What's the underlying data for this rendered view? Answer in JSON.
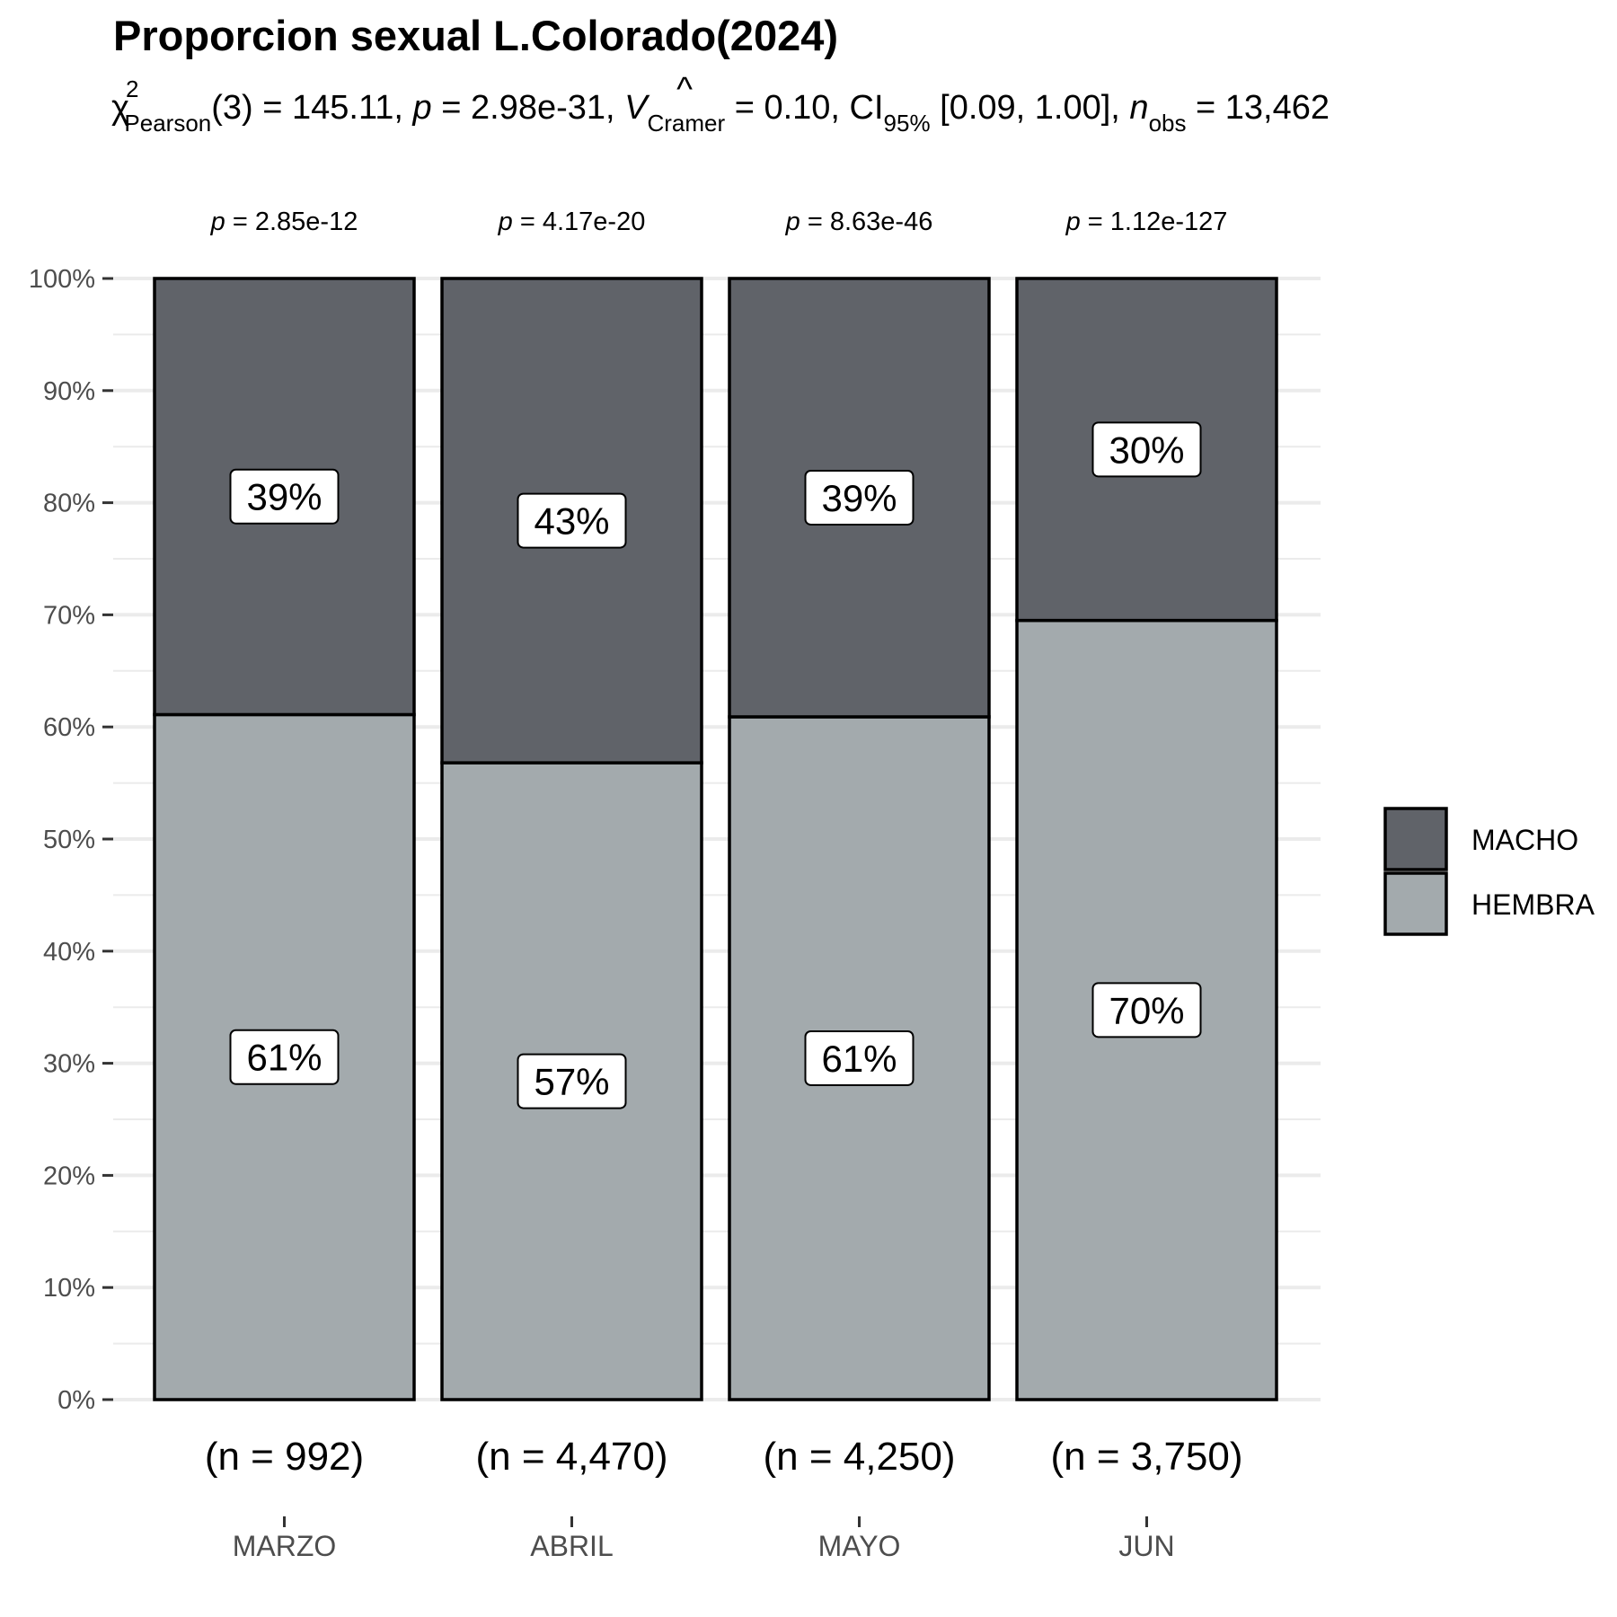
{
  "chart_data": {
    "type": "bar",
    "stacked": true,
    "percent": true,
    "title": "Proporcion sexual L.Colorado(2024)",
    "subtitle": {
      "chi": "χ",
      "chi_sup": "2",
      "chi_sub": "Pearson",
      "df": "(3) = 145.11, ",
      "p_symbol": "p",
      "p_value": " = 2.98e-31, ",
      "v_symbol": "V",
      "v_hat": "^",
      "v_sub": "Cramer",
      "v_value": " = 0.10, CI",
      "ci_sub": "95%",
      "ci_value": " [0.09, 1.00], ",
      "n_symbol": "n",
      "n_sub": "obs",
      "n_value": " = 13,462"
    },
    "xlabel": "",
    "ylabel": "",
    "ylim": [
      0,
      100
    ],
    "y_ticks": [
      "0%",
      "10%",
      "20%",
      "30%",
      "40%",
      "50%",
      "60%",
      "70%",
      "80%",
      "90%",
      "100%"
    ],
    "categories": [
      "MARZO",
      "ABRIL",
      "MAYO",
      "JUN"
    ],
    "n_labels": [
      "(n = 992)",
      "(n = 4,470)",
      "(n = 4,250)",
      "(n = 3,750)"
    ],
    "p_symbol": "p",
    "p_labels": [
      " = 2.85e-12",
      " = 4.17e-20",
      " = 8.63e-46",
      " = 1.12e-127"
    ],
    "series": [
      {
        "name": "HEMBRA",
        "color": "#a3aaad",
        "values": [
          61.1,
          56.8,
          60.9,
          69.5
        ],
        "labels": [
          "61%",
          "57%",
          "61%",
          "70%"
        ]
      },
      {
        "name": "MACHO",
        "color": "#606369",
        "values": [
          38.9,
          43.2,
          39.1,
          30.5
        ],
        "labels": [
          "39%",
          "43%",
          "39%",
          "30%"
        ]
      }
    ],
    "legend": {
      "position": "right",
      "entries": [
        "MACHO",
        "HEMBRA"
      ]
    },
    "grid": true
  }
}
